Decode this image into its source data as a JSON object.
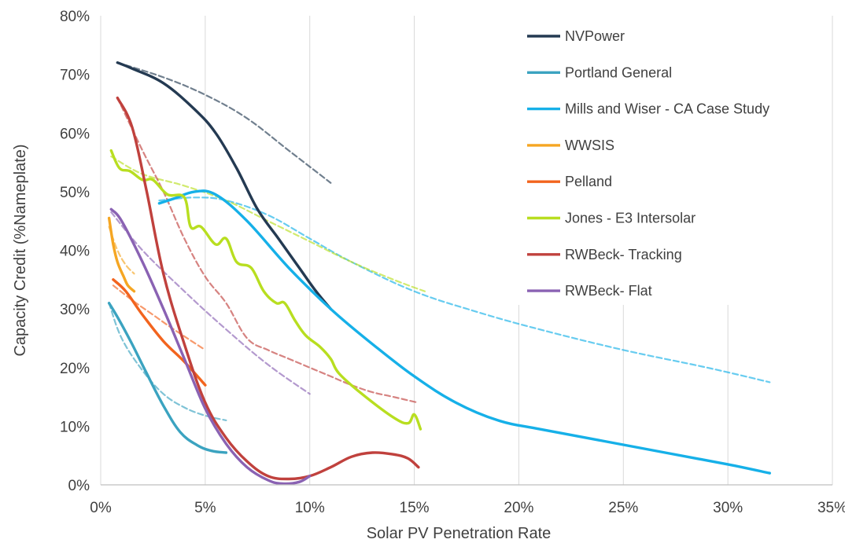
{
  "chart_data": {
    "type": "line",
    "title": "",
    "xlabel": "Solar PV Penetration Rate",
    "ylabel": "Capacity Credit (%Nameplate)",
    "xlim": [
      0,
      35
    ],
    "ylim": [
      0,
      80
    ],
    "x_ticks": [
      "0%",
      "5%",
      "10%",
      "15%",
      "20%",
      "25%",
      "30%",
      "35%"
    ],
    "y_ticks": [
      "0%",
      "10%",
      "20%",
      "30%",
      "40%",
      "50%",
      "60%",
      "70%",
      "80%"
    ],
    "grid": "vertical",
    "legend_position": "top-right",
    "series": [
      {
        "name": "NVPower",
        "color": "#243A52",
        "values": [
          [
            0.8,
            72
          ],
          [
            1.5,
            71
          ],
          [
            3,
            68.5
          ],
          [
            4.5,
            64
          ],
          [
            5.5,
            60
          ],
          [
            6.5,
            54
          ],
          [
            7.5,
            47
          ],
          [
            8.5,
            42
          ],
          [
            9.5,
            37
          ],
          [
            10.3,
            33
          ],
          [
            11,
            30
          ]
        ],
        "trend": [
          [
            0.8,
            72
          ],
          [
            3,
            69.5
          ],
          [
            5,
            66.5
          ],
          [
            7,
            62.5
          ],
          [
            9,
            57
          ],
          [
            11,
            51.5
          ]
        ]
      },
      {
        "name": "Portland General",
        "color": "#3BA3C0",
        "values": [
          [
            0.4,
            31
          ],
          [
            0.9,
            28
          ],
          [
            1.5,
            24
          ],
          [
            2.2,
            19
          ],
          [
            3,
            13.5
          ],
          [
            3.8,
            9
          ],
          [
            4.6,
            6.8
          ],
          [
            5.3,
            5.8
          ],
          [
            6,
            5.5
          ]
        ],
        "trend": [
          [
            0.4,
            31
          ],
          [
            1,
            25
          ],
          [
            2,
            19.5
          ],
          [
            3,
            15.5
          ],
          [
            4,
            13.2
          ],
          [
            5,
            11.8
          ],
          [
            6,
            11
          ]
        ]
      },
      {
        "name": "Mills and Wiser - CA Case Study",
        "color": "#16B0E8",
        "values": [
          [
            2.8,
            48
          ],
          [
            3.5,
            48.8
          ],
          [
            4.5,
            50
          ],
          [
            5.5,
            49.5
          ],
          [
            7,
            45
          ],
          [
            9,
            37
          ],
          [
            11,
            30
          ],
          [
            13,
            24
          ],
          [
            15,
            18.5
          ],
          [
            17,
            14
          ],
          [
            19,
            11
          ],
          [
            21,
            9.5
          ],
          [
            24,
            7.5
          ],
          [
            27,
            5.5
          ],
          [
            30,
            3.5
          ],
          [
            32,
            2
          ]
        ],
        "trend": [
          [
            2.8,
            48.5
          ],
          [
            4.5,
            49
          ],
          [
            6,
            48.5
          ],
          [
            8,
            46
          ],
          [
            10,
            42
          ],
          [
            12,
            38
          ],
          [
            15,
            33
          ],
          [
            18,
            29.5
          ],
          [
            21,
            26.5
          ],
          [
            25,
            23
          ],
          [
            29,
            20
          ],
          [
            32,
            17.5
          ]
        ]
      },
      {
        "name": "WWSIS",
        "color": "#F5A623",
        "values": [
          [
            0.4,
            45.5
          ],
          [
            0.6,
            41
          ],
          [
            0.8,
            38
          ],
          [
            1.1,
            35.5
          ],
          [
            1.3,
            34
          ],
          [
            1.6,
            33
          ]
        ],
        "trend": [
          [
            0.4,
            44
          ],
          [
            0.8,
            40
          ],
          [
            1.2,
            37.5
          ],
          [
            1.6,
            36
          ]
        ]
      },
      {
        "name": "Pelland",
        "color": "#F2641E",
        "values": [
          [
            0.6,
            35
          ],
          [
            1.2,
            33
          ],
          [
            2,
            29
          ],
          [
            3,
            24.5
          ],
          [
            4,
            21
          ],
          [
            5,
            17
          ]
        ],
        "trend": [
          [
            0.6,
            34
          ],
          [
            1.5,
            31.5
          ],
          [
            2.5,
            29
          ],
          [
            3.5,
            26.5
          ],
          [
            5,
            23
          ]
        ]
      },
      {
        "name": "Jones - E3 Intersolar",
        "color": "#B8DE20",
        "values": [
          [
            0.5,
            57
          ],
          [
            0.9,
            54
          ],
          [
            1.4,
            53.5
          ],
          [
            2,
            52
          ],
          [
            2.5,
            52
          ],
          [
            3.2,
            49.5
          ],
          [
            4,
            49
          ],
          [
            4.3,
            44
          ],
          [
            4.8,
            44
          ],
          [
            5.5,
            41
          ],
          [
            6,
            42
          ],
          [
            6.5,
            38
          ],
          [
            7.2,
            37
          ],
          [
            7.8,
            33
          ],
          [
            8.4,
            31
          ],
          [
            8.8,
            31
          ],
          [
            9.3,
            28
          ],
          [
            9.8,
            25.5
          ],
          [
            10.5,
            23.5
          ],
          [
            11,
            21.5
          ],
          [
            11.4,
            19
          ],
          [
            12.5,
            15.5
          ],
          [
            14,
            11.5
          ],
          [
            14.7,
            10.5
          ],
          [
            15,
            12
          ],
          [
            15.3,
            9.5
          ]
        ],
        "trend": [
          [
            0.5,
            56
          ],
          [
            2,
            53
          ],
          [
            4,
            51
          ],
          [
            6,
            48.5
          ],
          [
            8,
            45
          ],
          [
            10,
            41.5
          ],
          [
            12,
            38
          ],
          [
            14,
            35
          ],
          [
            15.5,
            33
          ]
        ]
      },
      {
        "name": "RWBeck- Tracking",
        "color": "#C0413D",
        "values": [
          [
            0.8,
            66
          ],
          [
            1.5,
            61
          ],
          [
            2.2,
            50
          ],
          [
            3,
            36
          ],
          [
            4,
            24
          ],
          [
            5,
            14
          ],
          [
            6,
            8
          ],
          [
            7,
            4
          ],
          [
            8,
            1.5
          ],
          [
            9,
            1
          ],
          [
            10,
            1.5
          ],
          [
            11,
            3
          ],
          [
            12,
            4.8
          ],
          [
            13,
            5.5
          ],
          [
            14,
            5.2
          ],
          [
            14.7,
            4.5
          ],
          [
            15.2,
            3
          ]
        ],
        "trend": [
          [
            0.8,
            66
          ],
          [
            2,
            57
          ],
          [
            3,
            50
          ],
          [
            4,
            42
          ],
          [
            5,
            35.5
          ],
          [
            6,
            31
          ],
          [
            7,
            25
          ],
          [
            8,
            23
          ],
          [
            9,
            21.5
          ],
          [
            10,
            20
          ],
          [
            11,
            18.5
          ],
          [
            12,
            17
          ],
          [
            13,
            15.8
          ],
          [
            14,
            15
          ],
          [
            15.2,
            14
          ]
        ]
      },
      {
        "name": "RWBeck- Flat",
        "color": "#8A62B3",
        "values": [
          [
            0.5,
            47
          ],
          [
            1,
            45
          ],
          [
            2,
            38
          ],
          [
            3,
            30
          ],
          [
            4,
            21.5
          ],
          [
            5,
            13
          ],
          [
            6,
            7
          ],
          [
            7,
            3
          ],
          [
            8,
            0.8
          ],
          [
            8.7,
            0.2
          ],
          [
            9.5,
            0.5
          ],
          [
            10,
            1.5
          ]
        ],
        "trend": [
          [
            0.5,
            46.5
          ],
          [
            2,
            40
          ],
          [
            4,
            33
          ],
          [
            6,
            26.5
          ],
          [
            8,
            20.5
          ],
          [
            10,
            15.5
          ]
        ]
      }
    ]
  },
  "legend": {
    "items": [
      {
        "label": "NVPower",
        "color": "#243A52"
      },
      {
        "label": "Portland General",
        "color": "#3BA3C0"
      },
      {
        "label": "Mills and Wiser - CA Case Study",
        "color": "#16B0E8"
      },
      {
        "label": "WWSIS",
        "color": "#F5A623"
      },
      {
        "label": "Pelland",
        "color": "#F2641E"
      },
      {
        "label": "Jones - E3 Intersolar",
        "color": "#B8DE20"
      },
      {
        "label": "RWBeck- Tracking",
        "color": "#C0413D"
      },
      {
        "label": "RWBeck- Flat",
        "color": "#8A62B3"
      }
    ]
  }
}
